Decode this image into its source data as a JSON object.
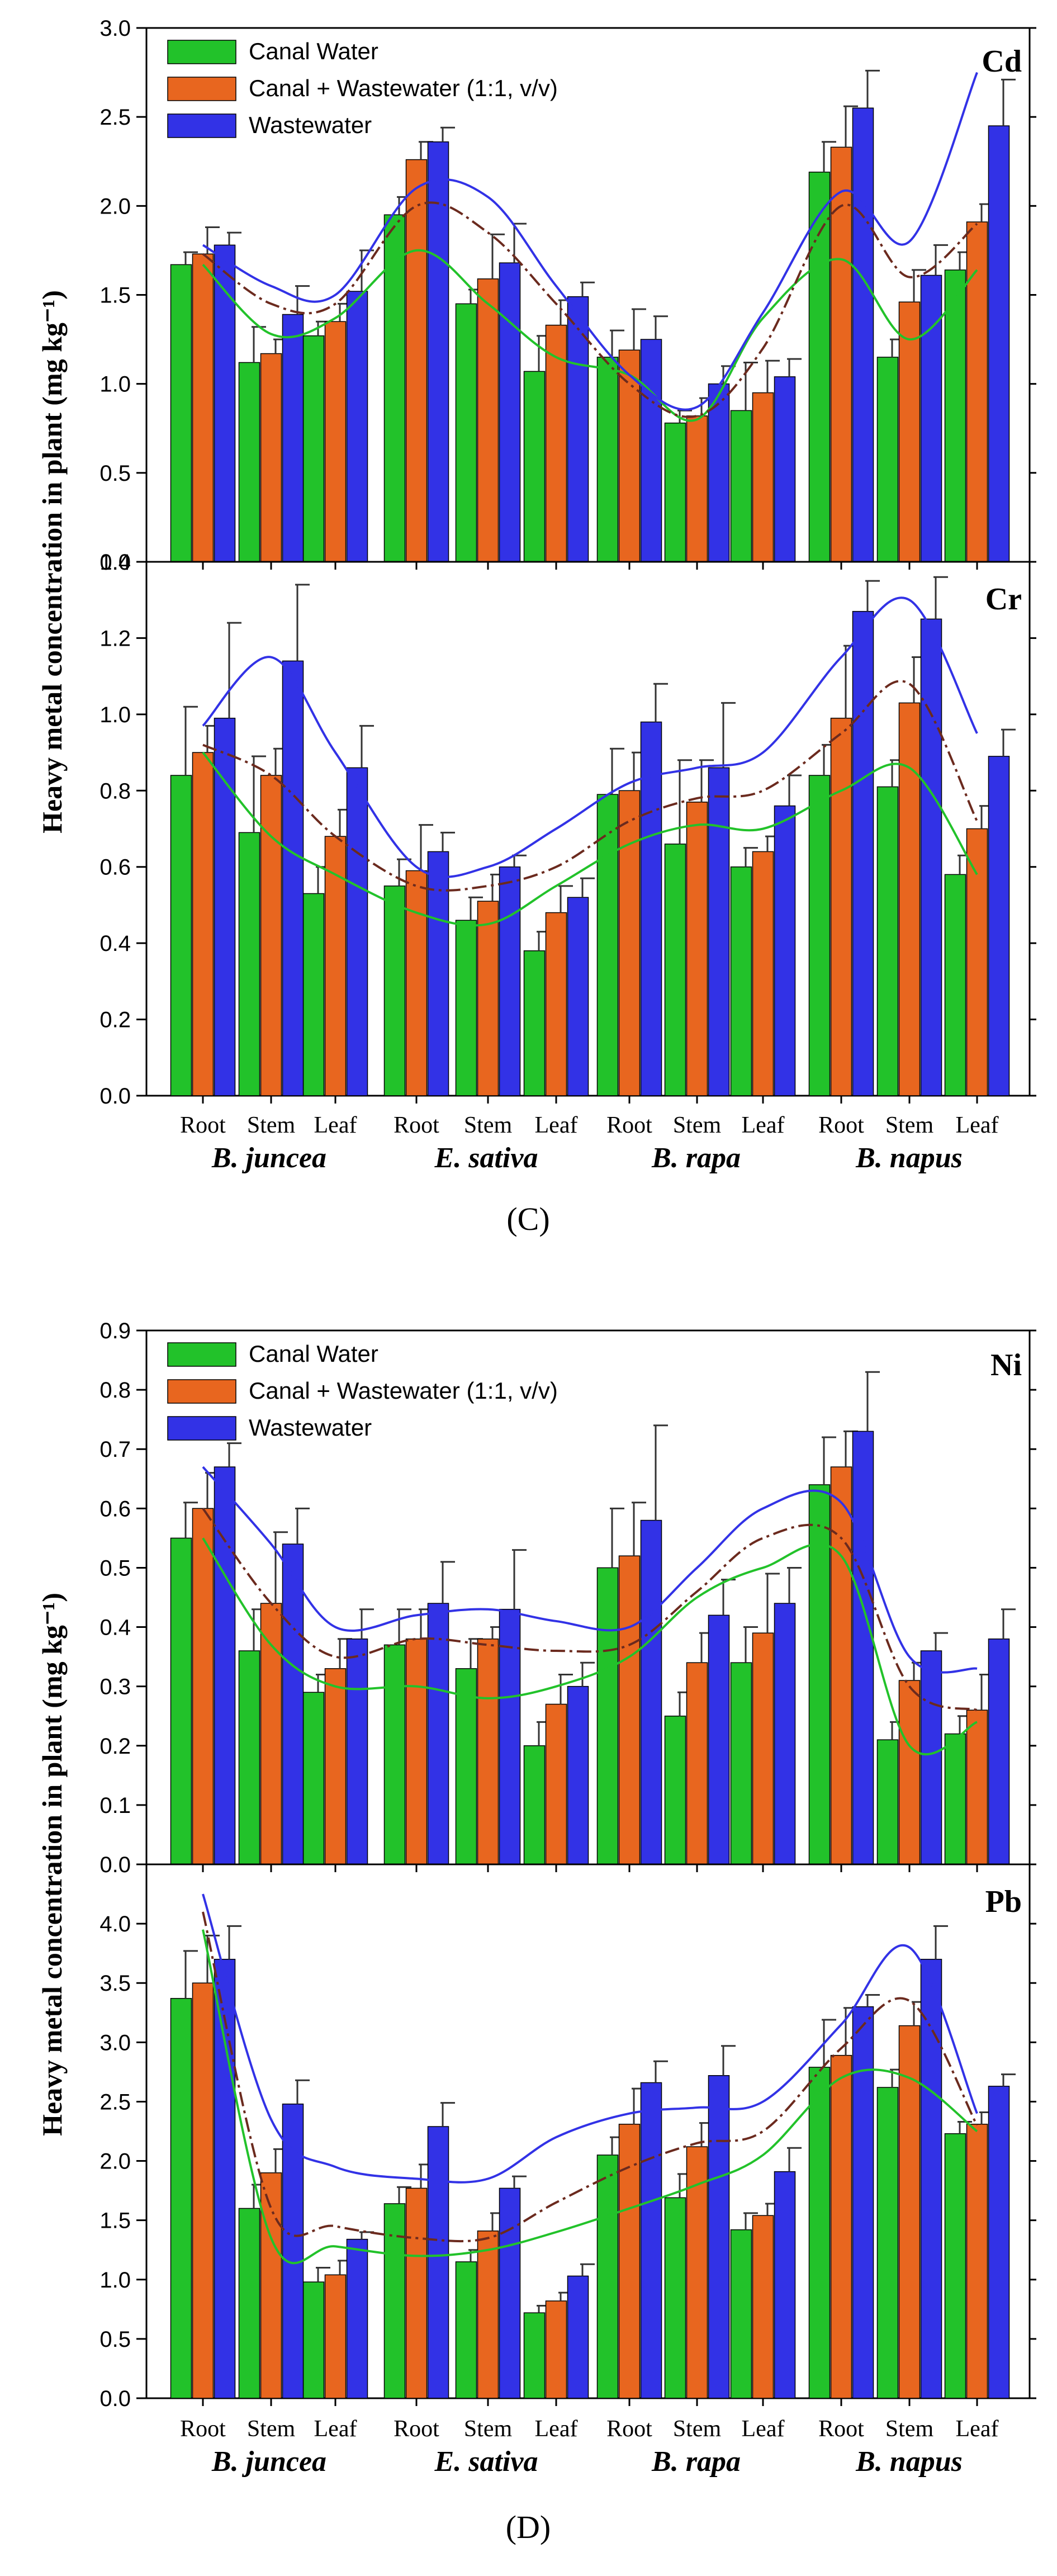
{
  "series_names": [
    "Canal Water",
    "Canal + Wastewater (1:1, v/v)",
    "Wastewater"
  ],
  "colors": {
    "canal": "#22c22a",
    "mix": "#e8661f",
    "waste": "#3232e6",
    "trend_mix": "#6b2a1e"
  },
  "categories": [
    "Root",
    "Stem",
    "Leaf",
    "Root",
    "Stem",
    "Leaf",
    "Root",
    "Stem",
    "Leaf",
    "Root",
    "Stem",
    "Leaf"
  ],
  "species": [
    "B. juncea",
    "E. sativa",
    "B. rapa",
    "B. napus"
  ],
  "captions": {
    "C": "(C)",
    "D": "(D)"
  },
  "ylabel": "Heavy metal concentration in plant (mg kg⁻¹)",
  "chart_data": [
    {
      "type": "bar",
      "title": "Cd",
      "panel": "C",
      "ylim": [
        0,
        3.0
      ],
      "yticks": [
        0.0,
        0.5,
        1.0,
        1.5,
        2.0,
        2.5,
        3.0
      ],
      "tick_decimals": 1,
      "categories": [
        "Root",
        "Stem",
        "Leaf",
        "Root",
        "Stem",
        "Leaf",
        "Root",
        "Stem",
        "Leaf",
        "Root",
        "Stem",
        "Leaf"
      ],
      "series": [
        {
          "name": "Canal Water",
          "values": [
            1.67,
            1.12,
            1.27,
            1.95,
            1.45,
            1.07,
            1.15,
            0.78,
            0.85,
            2.19,
            1.15,
            1.64
          ],
          "errors": [
            0.07,
            0.2,
            0.08,
            0.1,
            0.08,
            0.2,
            0.15,
            0.07,
            0.27,
            0.17,
            0.1,
            0.1
          ]
        },
        {
          "name": "Canal + Wastewater (1:1, v/v)",
          "values": [
            1.73,
            1.17,
            1.35,
            2.26,
            1.59,
            1.33,
            1.19,
            0.82,
            0.95,
            2.33,
            1.46,
            1.91
          ],
          "errors": [
            0.15,
            0.08,
            0.1,
            0.1,
            0.25,
            0.14,
            0.23,
            0.1,
            0.18,
            0.23,
            0.18,
            0.1
          ]
        },
        {
          "name": "Wastewater",
          "values": [
            1.78,
            1.39,
            1.52,
            2.36,
            1.68,
            1.49,
            1.25,
            1.0,
            1.04,
            2.55,
            1.61,
            2.45
          ],
          "errors": [
            0.07,
            0.16,
            0.23,
            0.08,
            0.22,
            0.08,
            0.13,
            0.1,
            0.1,
            0.21,
            0.17,
            0.26
          ]
        }
      ],
      "trends": [
        [
          1.67,
          1.28,
          1.37,
          1.75,
          1.45,
          1.15,
          1.05,
          0.8,
          1.37,
          1.7,
          1.25,
          1.64
        ],
        [
          1.73,
          1.45,
          1.45,
          2.0,
          1.85,
          1.45,
          1.0,
          0.82,
          1.2,
          2.0,
          1.6,
          1.9
        ],
        [
          1.78,
          1.55,
          1.5,
          2.1,
          2.05,
          1.55,
          1.05,
          0.87,
          1.4,
          2.08,
          1.8,
          2.75
        ]
      ]
    },
    {
      "type": "bar",
      "title": "Cr",
      "panel": "C",
      "ylim": [
        0,
        1.4
      ],
      "yticks": [
        0.0,
        0.2,
        0.4,
        0.6,
        0.8,
        1.0,
        1.2,
        1.4
      ],
      "tick_decimals": 1,
      "categories": [
        "Root",
        "Stem",
        "Leaf",
        "Root",
        "Stem",
        "Leaf",
        "Root",
        "Stem",
        "Leaf",
        "Root",
        "Stem",
        "Leaf"
      ],
      "series": [
        {
          "name": "Canal Water",
          "values": [
            0.84,
            0.69,
            0.53,
            0.55,
            0.46,
            0.38,
            0.79,
            0.66,
            0.6,
            0.84,
            0.81,
            0.58
          ],
          "errors": [
            0.18,
            0.2,
            0.07,
            0.07,
            0.06,
            0.05,
            0.12,
            0.22,
            0.05,
            0.08,
            0.07,
            0.05
          ]
        },
        {
          "name": "Canal + Wastewater (1:1, v/v)",
          "values": [
            0.9,
            0.84,
            0.68,
            0.59,
            0.51,
            0.48,
            0.8,
            0.77,
            0.64,
            0.99,
            1.03,
            0.7
          ],
          "errors": [
            0.07,
            0.07,
            0.07,
            0.12,
            0.07,
            0.07,
            0.1,
            0.11,
            0.04,
            0.19,
            0.12,
            0.06
          ]
        },
        {
          "name": "Wastewater",
          "values": [
            0.99,
            1.14,
            0.86,
            0.64,
            0.6,
            0.52,
            0.98,
            0.86,
            0.76,
            1.27,
            1.25,
            0.89
          ],
          "errors": [
            0.25,
            0.2,
            0.11,
            0.05,
            0.03,
            0.05,
            0.1,
            0.17,
            0.08,
            0.08,
            0.11,
            0.07
          ]
        }
      ],
      "trends": [
        [
          0.9,
          0.68,
          0.58,
          0.48,
          0.45,
          0.55,
          0.66,
          0.71,
          0.7,
          0.8,
          0.86,
          0.58
        ],
        [
          0.92,
          0.84,
          0.68,
          0.55,
          0.55,
          0.6,
          0.72,
          0.78,
          0.8,
          0.95,
          1.08,
          0.72
        ],
        [
          0.97,
          1.15,
          0.9,
          0.6,
          0.6,
          0.7,
          0.82,
          0.86,
          0.9,
          1.15,
          1.3,
          0.95
        ]
      ]
    },
    {
      "type": "bar",
      "title": "Ni",
      "panel": "D",
      "ylim": [
        0,
        0.9
      ],
      "yticks": [
        0.0,
        0.1,
        0.2,
        0.3,
        0.4,
        0.5,
        0.6,
        0.7,
        0.8,
        0.9
      ],
      "tick_decimals": 1,
      "categories": [
        "Root",
        "Stem",
        "Leaf",
        "Root",
        "Stem",
        "Leaf",
        "Root",
        "Stem",
        "Leaf",
        "Root",
        "Stem",
        "Leaf"
      ],
      "series": [
        {
          "name": "Canal Water",
          "values": [
            0.55,
            0.36,
            0.29,
            0.37,
            0.33,
            0.2,
            0.5,
            0.25,
            0.34,
            0.64,
            0.21,
            0.22
          ],
          "errors": [
            0.06,
            0.07,
            0.03,
            0.06,
            0.05,
            0.04,
            0.1,
            0.04,
            0.06,
            0.08,
            0.03,
            0.03
          ]
        },
        {
          "name": "Canal + Wastewater (1:1, v/v)",
          "values": [
            0.6,
            0.44,
            0.33,
            0.38,
            0.38,
            0.27,
            0.52,
            0.34,
            0.39,
            0.67,
            0.31,
            0.26
          ],
          "errors": [
            0.06,
            0.12,
            0.05,
            0.05,
            0.02,
            0.05,
            0.09,
            0.05,
            0.1,
            0.06,
            0.03,
            0.06
          ]
        },
        {
          "name": "Wastewater",
          "values": [
            0.67,
            0.54,
            0.38,
            0.44,
            0.43,
            0.3,
            0.58,
            0.42,
            0.44,
            0.73,
            0.36,
            0.38
          ],
          "errors": [
            0.04,
            0.06,
            0.05,
            0.07,
            0.1,
            0.04,
            0.16,
            0.06,
            0.06,
            0.1,
            0.03,
            0.05
          ]
        }
      ],
      "trends": [
        [
          0.55,
          0.37,
          0.3,
          0.3,
          0.28,
          0.3,
          0.35,
          0.45,
          0.5,
          0.52,
          0.2,
          0.24
        ],
        [
          0.6,
          0.44,
          0.35,
          0.38,
          0.37,
          0.36,
          0.37,
          0.46,
          0.55,
          0.55,
          0.3,
          0.26
        ],
        [
          0.67,
          0.54,
          0.4,
          0.42,
          0.43,
          0.41,
          0.4,
          0.5,
          0.6,
          0.61,
          0.35,
          0.33
        ]
      ]
    },
    {
      "type": "bar",
      "title": "Pb",
      "panel": "D",
      "ylim": [
        0,
        4.5
      ],
      "yticks": [
        0.0,
        0.5,
        1.0,
        1.5,
        2.0,
        2.5,
        3.0,
        3.5,
        4.0
      ],
      "tick_decimals": 1,
      "categories": [
        "Root",
        "Stem",
        "Leaf",
        "Root",
        "Stem",
        "Leaf",
        "Root",
        "Stem",
        "Leaf",
        "Root",
        "Stem",
        "Leaf"
      ],
      "series": [
        {
          "name": "Canal Water",
          "values": [
            3.37,
            1.6,
            0.98,
            1.64,
            1.15,
            0.72,
            2.05,
            1.69,
            1.42,
            2.79,
            2.62,
            2.23
          ],
          "errors": [
            0.4,
            0.2,
            0.12,
            0.14,
            0.1,
            0.06,
            0.15,
            0.2,
            0.14,
            0.4,
            0.15,
            0.1
          ]
        },
        {
          "name": "Canal + Wastewater (1:1, v/v)",
          "values": [
            3.5,
            1.9,
            1.04,
            1.77,
            1.41,
            0.82,
            2.31,
            2.12,
            1.54,
            2.89,
            3.14,
            2.31
          ],
          "errors": [
            0.4,
            0.2,
            0.12,
            0.2,
            0.15,
            0.07,
            0.3,
            0.2,
            0.1,
            0.4,
            0.2,
            0.1
          ]
        },
        {
          "name": "Wastewater",
          "values": [
            3.7,
            2.48,
            1.34,
            2.29,
            1.77,
            1.03,
            2.66,
            2.72,
            1.91,
            3.3,
            3.7,
            2.63
          ],
          "errors": [
            0.28,
            0.2,
            0.06,
            0.2,
            0.1,
            0.1,
            0.18,
            0.25,
            0.2,
            0.1,
            0.28,
            0.1
          ]
        }
      ],
      "trends": [
        [
          3.95,
          1.35,
          1.28,
          1.2,
          1.25,
          1.4,
          1.6,
          1.8,
          2.05,
          2.7,
          2.7,
          2.25
        ],
        [
          4.1,
          1.6,
          1.45,
          1.35,
          1.35,
          1.65,
          1.95,
          2.15,
          2.25,
          2.95,
          3.35,
          2.3
        ],
        [
          4.25,
          2.35,
          1.95,
          1.85,
          1.85,
          2.2,
          2.4,
          2.45,
          2.5,
          3.15,
          3.8,
          2.4
        ]
      ]
    }
  ]
}
